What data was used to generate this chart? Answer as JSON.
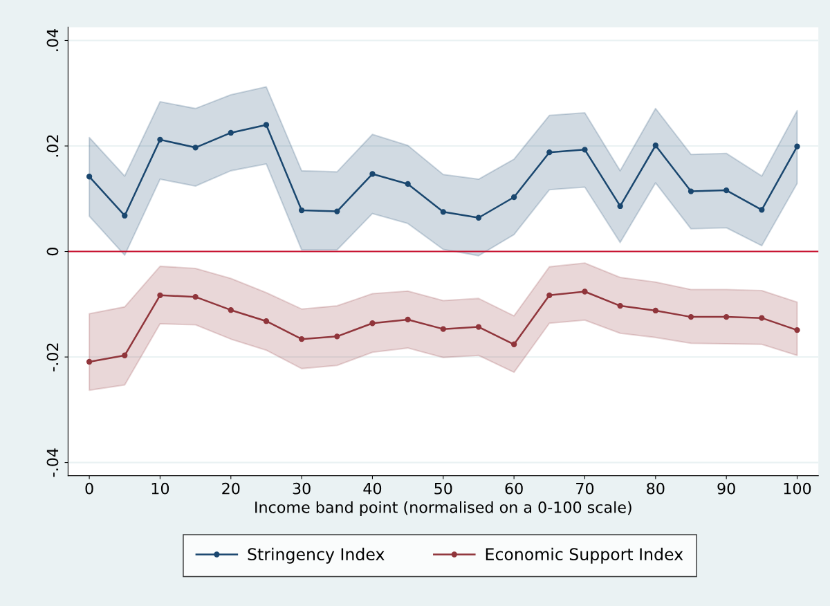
{
  "chart_data": {
    "type": "line",
    "xlabel": "Income band point (normalised on a 0-100 scale)",
    "x": [
      0,
      5,
      10,
      15,
      20,
      25,
      30,
      35,
      40,
      45,
      50,
      55,
      60,
      65,
      70,
      75,
      80,
      85,
      90,
      95,
      100
    ],
    "series": [
      {
        "name": "Stringency Index",
        "color": "#1a476f",
        "values": [
          0.0142,
          0.0068,
          0.0212,
          0.0197,
          0.0225,
          0.024,
          0.0078,
          0.0076,
          0.0147,
          0.0128,
          0.0075,
          0.0064,
          0.0103,
          0.0188,
          0.0193,
          0.0086,
          0.0201,
          0.0114,
          0.0116,
          0.0079,
          0.0199
        ],
        "upper": [
          0.0216,
          0.0143,
          0.0284,
          0.0271,
          0.0297,
          0.0312,
          0.0153,
          0.0151,
          0.0222,
          0.0201,
          0.0146,
          0.0137,
          0.0175,
          0.0258,
          0.0263,
          0.0153,
          0.0271,
          0.0184,
          0.0186,
          0.0143,
          0.0267
        ],
        "lower": [
          0.0067,
          -0.0007,
          0.0137,
          0.0124,
          0.0153,
          0.0166,
          0.0003,
          0.0003,
          0.0072,
          0.0053,
          0.0004,
          -0.0008,
          0.0032,
          0.0117,
          0.0122,
          0.0017,
          0.013,
          0.0043,
          0.0045,
          0.0011,
          0.0129
        ]
      },
      {
        "name": "Economic Support Index",
        "color": "#90353b",
        "values": [
          -0.0209,
          -0.0197,
          -0.0083,
          -0.0086,
          -0.0111,
          -0.0132,
          -0.0166,
          -0.0161,
          -0.0136,
          -0.0129,
          -0.0147,
          -0.0143,
          -0.0176,
          -0.0083,
          -0.0076,
          -0.0103,
          -0.0112,
          -0.0124,
          -0.0124,
          -0.0126,
          -0.0149
        ],
        "upper": [
          -0.0118,
          -0.0105,
          -0.0028,
          -0.0032,
          -0.0051,
          -0.0078,
          -0.0109,
          -0.0103,
          -0.008,
          -0.0075,
          -0.0093,
          -0.0089,
          -0.0122,
          -0.0029,
          -0.0022,
          -0.0049,
          -0.0058,
          -0.0072,
          -0.0072,
          -0.0074,
          -0.0096
        ],
        "lower": [
          -0.0263,
          -0.0253,
          -0.0137,
          -0.0139,
          -0.0166,
          -0.0187,
          -0.0222,
          -0.0216,
          -0.0191,
          -0.0183,
          -0.0201,
          -0.0197,
          -0.0229,
          -0.0136,
          -0.013,
          -0.0155,
          -0.0163,
          -0.0174,
          -0.0175,
          -0.0176,
          -0.0197
        ]
      }
    ],
    "xlim": [
      -3,
      103
    ],
    "xticks": [
      0,
      10,
      20,
      30,
      40,
      50,
      60,
      70,
      80,
      90,
      100
    ],
    "ylim": [
      -0.0425,
      0.0425
    ],
    "yticks": [
      {
        "value": -0.04,
        "label": "-.04"
      },
      {
        "value": -0.02,
        "label": "-.02"
      },
      {
        "value": 0,
        "label": "0"
      },
      {
        "value": 0.02,
        "label": ".02"
      },
      {
        "value": 0.04,
        "label": ".04"
      }
    ],
    "ref_lines": [
      {
        "axis": "y",
        "value": 0,
        "color": "#c8102e"
      }
    ],
    "grid": "y",
    "legend": "bottom",
    "marker": "circle",
    "line_style": "solid"
  }
}
